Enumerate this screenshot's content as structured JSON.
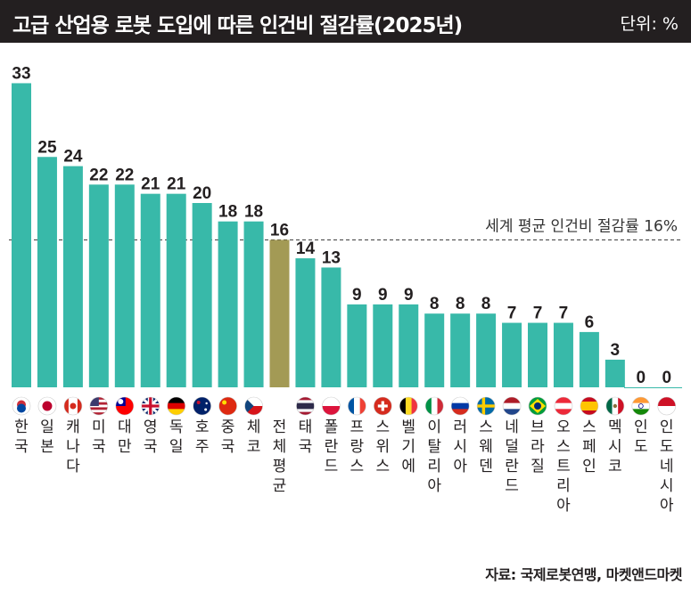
{
  "header": {
    "title": "고급 산업용 로봇 도입에 따른 인건비 절감률(2025년)",
    "unit": "단위: %"
  },
  "footer": {
    "source": "자료: 국제로봇연맹, 마켓앤드마켓"
  },
  "colors": {
    "bar": "#38b9a9",
    "average_bar": "#a39a55",
    "background": "#ffffff",
    "title_bar": "#231f20"
  },
  "chart_data": {
    "type": "bar",
    "title": "고급 산업용 로봇 도입에 따른 인건비 절감률(2025년)",
    "ylabel": "",
    "xlabel": "",
    "ylim": [
      0,
      33
    ],
    "grid": false,
    "legend": "none",
    "categories": [
      "한국",
      "일본",
      "캐나다",
      "미국",
      "대만",
      "영국",
      "독일",
      "호주",
      "중국",
      "체코",
      "전체 평균",
      "태국",
      "폴란드",
      "프랑스",
      "스위스",
      "벨기에",
      "이탈리아",
      "러시아",
      "스웨덴",
      "네덜란드",
      "브라질",
      "오스트리아",
      "스페인",
      "멕시코",
      "인도",
      "인도네시아"
    ],
    "values": [
      33,
      25,
      24,
      22,
      22,
      21,
      21,
      20,
      18,
      18,
      16,
      14,
      13,
      9,
      9,
      9,
      8,
      8,
      8,
      7,
      7,
      7,
      6,
      3,
      0,
      0
    ],
    "highlight_category": "전체 평균",
    "flag_icons": [
      "korea-flag-icon",
      "japan-flag-icon",
      "canada-flag-icon",
      "usa-flag-icon",
      "taiwan-flag-icon",
      "uk-flag-icon",
      "germany-flag-icon",
      "australia-flag-icon",
      "china-flag-icon",
      "czech-flag-icon",
      "",
      "thailand-flag-icon",
      "poland-flag-icon",
      "france-flag-icon",
      "switzerland-flag-icon",
      "belgium-flag-icon",
      "italy-flag-icon",
      "russia-flag-icon",
      "sweden-flag-icon",
      "netherlands-flag-icon",
      "brazil-flag-icon",
      "austria-flag-icon",
      "spain-flag-icon",
      "mexico-flag-icon",
      "india-flag-icon",
      "indonesia-flag-icon"
    ],
    "reference_line": {
      "value": 16,
      "label": "세계 평균 인건비 절감률 16%",
      "style": "dashed"
    }
  }
}
